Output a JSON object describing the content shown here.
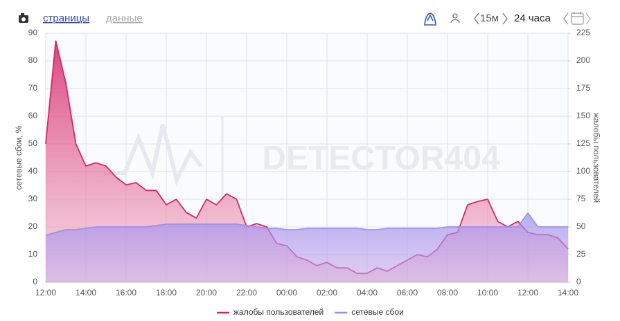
{
  "toolbar": {
    "tabs": [
      "страницы",
      "данные"
    ],
    "step": "15м",
    "period": "24 часа"
  },
  "chart_data": {
    "type": "line",
    "watermark": "DETECTOR404",
    "ylabel": "сетевые сбои, %",
    "y2label": "жалобы пользователей",
    "x": [
      0,
      0.5,
      1,
      1.5,
      2,
      2.5,
      3,
      3.5,
      4,
      4.5,
      5,
      5.5,
      6,
      6.5,
      7,
      7.5,
      8,
      8.5,
      9,
      9.5,
      10,
      10.5,
      11,
      11.5,
      12,
      12.5,
      13,
      13.5,
      14,
      14.5,
      15,
      15.5,
      16,
      16.5,
      17,
      17.5,
      18,
      18.5,
      19,
      19.5,
      20,
      20.5,
      21,
      21.5,
      22,
      22.5,
      23,
      23.5,
      24,
      24.5,
      25,
      25.5,
      26
    ],
    "xlim": [
      0,
      26
    ],
    "xticks": [
      {
        "value": 0,
        "label": "12:00"
      },
      {
        "value": 2,
        "label": "14:00"
      },
      {
        "value": 4,
        "label": "16:00"
      },
      {
        "value": 6,
        "label": "18:00"
      },
      {
        "value": 8,
        "label": "20:00"
      },
      {
        "value": 10,
        "label": "22:00"
      },
      {
        "value": 12,
        "label": "00:00"
      },
      {
        "value": 14,
        "label": "02:00"
      },
      {
        "value": 16,
        "label": "04:00"
      },
      {
        "value": 18,
        "label": "06:00"
      },
      {
        "value": 20,
        "label": "08:00"
      },
      {
        "value": 22,
        "label": "10:00"
      },
      {
        "value": 24,
        "label": "12:00"
      },
      {
        "value": 26,
        "label": "14:00"
      }
    ],
    "ylim": [
      0,
      90
    ],
    "yticks": [
      0,
      10,
      20,
      30,
      40,
      50,
      60,
      70,
      80,
      90
    ],
    "y2lim": [
      0,
      225
    ],
    "y2ticks": [
      0,
      25,
      50,
      75,
      100,
      125,
      150,
      175,
      200,
      225
    ],
    "grid": true,
    "series": [
      {
        "name": "жалобы пользователей",
        "color": "#d6266a",
        "axis": "y2",
        "values": [
          125,
          218,
          180,
          125,
          105,
          108,
          105,
          95,
          88,
          90,
          83,
          83,
          70,
          75,
          63,
          58,
          75,
          70,
          80,
          75,
          50,
          53,
          50,
          35,
          33,
          23,
          20,
          15,
          18,
          13,
          13,
          8,
          8,
          13,
          10,
          15,
          20,
          25,
          23,
          30,
          43,
          45,
          70,
          73,
          75,
          55,
          50,
          55,
          45,
          43,
          43,
          40,
          30
        ]
      },
      {
        "name": "сетевые сбои",
        "color": "#9d8ff0",
        "values": [
          17,
          18,
          19,
          19,
          19.5,
          20,
          20,
          20,
          20,
          20,
          20,
          20.5,
          21,
          21,
          21,
          21,
          21,
          21,
          21,
          21,
          20.5,
          20,
          19.5,
          19.5,
          19,
          19,
          19.5,
          19.5,
          19.5,
          19.5,
          19.5,
          19.5,
          19,
          19,
          19.5,
          19.5,
          19.5,
          19.5,
          19.5,
          19.5,
          20,
          20,
          20,
          20,
          20,
          20,
          20,
          20,
          25,
          20,
          20,
          20,
          20
        ]
      }
    ]
  }
}
